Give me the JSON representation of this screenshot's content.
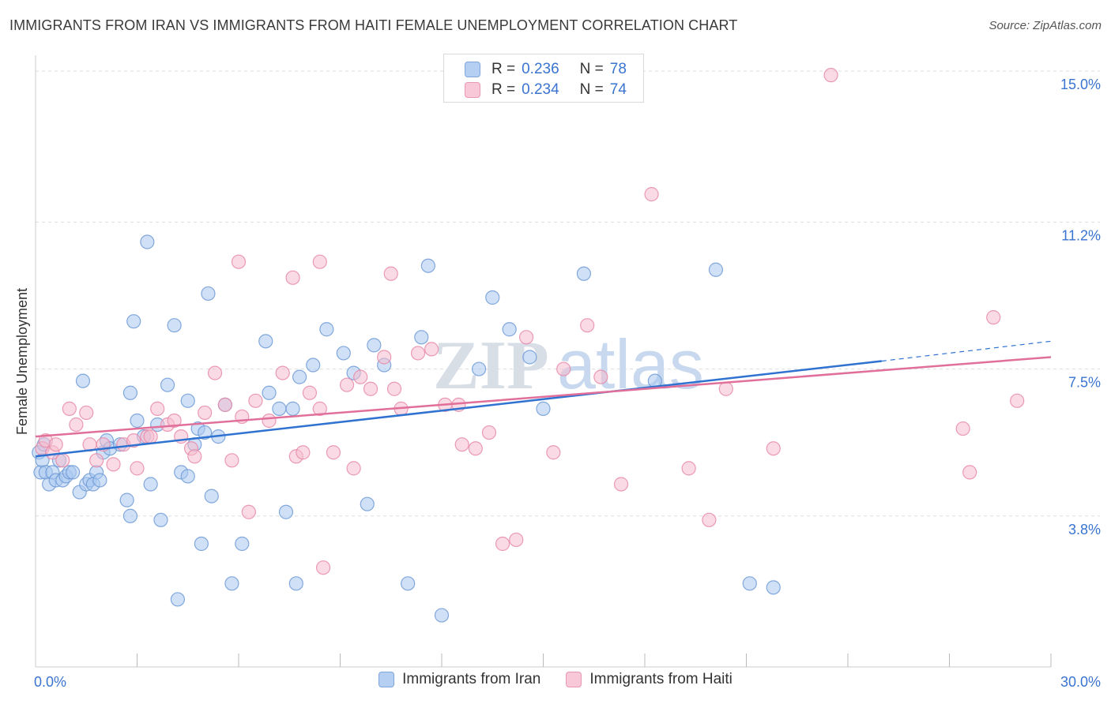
{
  "title": "IMMIGRANTS FROM IRAN VS IMMIGRANTS FROM HAITI FEMALE UNEMPLOYMENT CORRELATION CHART",
  "source": "Source: ZipAtlas.com",
  "watermark": {
    "zip": "ZIP",
    "atlas": "atlas"
  },
  "legend": [
    {
      "r_label": "R =",
      "r_value": "0.236",
      "n_label": "N =",
      "n_value": "78"
    },
    {
      "r_label": "R =",
      "r_value": "0.234",
      "n_label": "N =",
      "n_value": "74"
    }
  ],
  "colors": {
    "iran_fill": "#aac8f0",
    "iran_stroke": "#6f9ad6",
    "iran_line": "#2f72d0",
    "haiti_fill": "#f6bdd0",
    "haiti_stroke": "#e88aa8",
    "haiti_line": "#e0709a",
    "grid": "#dddddd",
    "tick_label": "#3a74d0"
  },
  "chart_data": {
    "type": "scatter",
    "title": "IMMIGRANTS FROM IRAN VS IMMIGRANTS FROM HAITI FEMALE UNEMPLOYMENT CORRELATION CHART",
    "xlabel": "",
    "ylabel": "Female Unemployment",
    "xlim": [
      0,
      30
    ],
    "ylim": [
      0,
      15.4
    ],
    "x_tick_labels": [
      {
        "value": 0,
        "label": "0.0%"
      },
      {
        "value": 30,
        "label": "30.0%"
      }
    ],
    "y_ticks": [
      {
        "value": 3.8,
        "label": "3.8%"
      },
      {
        "value": 7.5,
        "label": "7.5%"
      },
      {
        "value": 11.2,
        "label": "11.2%"
      },
      {
        "value": 15.0,
        "label": "15.0%"
      }
    ],
    "x_minor_ticks": [
      3,
      6,
      9,
      12,
      15,
      18,
      21,
      24,
      27,
      30
    ],
    "series": [
      {
        "name": "Immigrants from Iran",
        "R": 0.236,
        "N": 78,
        "trend": {
          "x0": 0,
          "y0": 5.3,
          "x1": 25.0,
          "y1": 7.7,
          "dash_to_x": 30,
          "dash_to_y": 8.2
        },
        "points": [
          [
            0.1,
            5.4
          ],
          [
            0.15,
            4.9
          ],
          [
            0.2,
            5.2
          ],
          [
            0.25,
            5.6
          ],
          [
            0.3,
            4.9
          ],
          [
            0.4,
            4.6
          ],
          [
            0.5,
            4.9
          ],
          [
            0.6,
            4.7
          ],
          [
            0.7,
            5.2
          ],
          [
            0.8,
            4.7
          ],
          [
            0.9,
            4.8
          ],
          [
            1.0,
            4.9
          ],
          [
            1.1,
            4.9
          ],
          [
            1.3,
            4.4
          ],
          [
            1.5,
            4.6
          ],
          [
            1.6,
            4.7
          ],
          [
            1.7,
            4.6
          ],
          [
            1.8,
            4.9
          ],
          [
            1.9,
            4.7
          ],
          [
            2.0,
            5.4
          ],
          [
            2.1,
            5.7
          ],
          [
            2.2,
            5.5
          ],
          [
            2.5,
            5.6
          ],
          [
            2.7,
            4.2
          ],
          [
            2.8,
            6.9
          ],
          [
            3.0,
            6.2
          ],
          [
            3.2,
            5.8
          ],
          [
            3.4,
            4.6
          ],
          [
            3.6,
            6.1
          ],
          [
            3.9,
            7.1
          ],
          [
            4.1,
            8.6
          ],
          [
            4.3,
            4.9
          ],
          [
            4.5,
            6.7
          ],
          [
            4.7,
            5.6
          ],
          [
            4.8,
            6.0
          ],
          [
            5.0,
            5.9
          ],
          [
            5.2,
            4.3
          ],
          [
            5.4,
            5.8
          ],
          [
            5.6,
            6.6
          ],
          [
            3.3,
            10.7
          ],
          [
            5.1,
            9.4
          ],
          [
            2.9,
            8.7
          ],
          [
            1.4,
            7.2
          ],
          [
            6.1,
            3.1
          ],
          [
            6.8,
            8.2
          ],
          [
            6.9,
            6.9
          ],
          [
            7.2,
            6.5
          ],
          [
            7.4,
            3.9
          ],
          [
            7.6,
            6.5
          ],
          [
            7.7,
            2.1
          ],
          [
            7.8,
            7.3
          ],
          [
            8.2,
            7.6
          ],
          [
            8.6,
            8.5
          ],
          [
            9.1,
            7.9
          ],
          [
            9.4,
            7.4
          ],
          [
            9.8,
            4.1
          ],
          [
            10.0,
            8.1
          ],
          [
            10.3,
            7.6
          ],
          [
            11.0,
            2.1
          ],
          [
            11.4,
            8.3
          ],
          [
            11.6,
            10.1
          ],
          [
            12.0,
            1.3
          ],
          [
            13.1,
            7.5
          ],
          [
            13.5,
            9.3
          ],
          [
            14.0,
            8.5
          ],
          [
            14.6,
            7.8
          ],
          [
            15.0,
            6.5
          ],
          [
            16.2,
            9.9
          ],
          [
            18.3,
            7.2
          ],
          [
            20.1,
            10.0
          ],
          [
            21.1,
            2.1
          ],
          [
            21.8,
            2.0
          ],
          [
            4.2,
            1.7
          ],
          [
            5.8,
            2.1
          ],
          [
            3.7,
            3.7
          ],
          [
            4.9,
            3.1
          ],
          [
            4.5,
            4.8
          ],
          [
            2.8,
            3.8
          ]
        ]
      },
      {
        "name": "Immigrants from Haiti",
        "R": 0.234,
        "N": 74,
        "trend": {
          "x0": 0,
          "y0": 5.8,
          "x1": 30,
          "y1": 7.8
        },
        "points": [
          [
            0.2,
            5.5
          ],
          [
            0.3,
            5.7
          ],
          [
            0.5,
            5.4
          ],
          [
            0.8,
            5.2
          ],
          [
            1.0,
            6.5
          ],
          [
            1.2,
            6.1
          ],
          [
            1.5,
            6.4
          ],
          [
            1.8,
            5.2
          ],
          [
            2.0,
            5.6
          ],
          [
            2.3,
            5.1
          ],
          [
            2.6,
            5.6
          ],
          [
            3.0,
            5.0
          ],
          [
            3.3,
            5.8
          ],
          [
            3.6,
            6.5
          ],
          [
            3.9,
            6.1
          ],
          [
            4.3,
            5.8
          ],
          [
            4.6,
            5.5
          ],
          [
            5.0,
            6.4
          ],
          [
            5.3,
            7.4
          ],
          [
            5.6,
            6.6
          ],
          [
            6.1,
            6.3
          ],
          [
            6.5,
            6.7
          ],
          [
            6.9,
            6.2
          ],
          [
            7.3,
            7.4
          ],
          [
            7.7,
            5.3
          ],
          [
            8.1,
            6.9
          ],
          [
            8.4,
            6.5
          ],
          [
            8.8,
            5.4
          ],
          [
            9.2,
            7.1
          ],
          [
            9.6,
            7.3
          ],
          [
            9.9,
            7.0
          ],
          [
            10.3,
            7.8
          ],
          [
            10.8,
            6.5
          ],
          [
            11.3,
            7.9
          ],
          [
            11.7,
            8.0
          ],
          [
            12.1,
            6.6
          ],
          [
            12.6,
            5.6
          ],
          [
            13.0,
            5.5
          ],
          [
            13.4,
            5.9
          ],
          [
            13.8,
            3.1
          ],
          [
            14.2,
            3.2
          ],
          [
            14.5,
            8.3
          ],
          [
            15.3,
            5.4
          ],
          [
            15.6,
            7.5
          ],
          [
            16.3,
            8.6
          ],
          [
            16.7,
            7.3
          ],
          [
            17.3,
            4.6
          ],
          [
            18.2,
            11.9
          ],
          [
            19.3,
            5.0
          ],
          [
            19.9,
            3.7
          ],
          [
            20.4,
            7.0
          ],
          [
            21.8,
            5.5
          ],
          [
            23.5,
            14.9
          ],
          [
            27.4,
            6.0
          ],
          [
            27.6,
            4.9
          ],
          [
            28.3,
            8.8
          ],
          [
            29.0,
            6.7
          ],
          [
            6.0,
            10.2
          ],
          [
            7.6,
            9.8
          ],
          [
            8.4,
            10.2
          ],
          [
            10.5,
            9.9
          ],
          [
            6.3,
            3.9
          ],
          [
            8.5,
            2.5
          ],
          [
            4.7,
            5.3
          ],
          [
            3.4,
            5.8
          ],
          [
            2.9,
            5.7
          ],
          [
            1.6,
            5.6
          ],
          [
            0.6,
            5.6
          ],
          [
            12.5,
            6.6
          ],
          [
            9.4,
            5.0
          ],
          [
            10.6,
            7.0
          ],
          [
            7.9,
            5.4
          ],
          [
            5.8,
            5.2
          ],
          [
            4.1,
            6.2
          ]
        ]
      }
    ]
  }
}
